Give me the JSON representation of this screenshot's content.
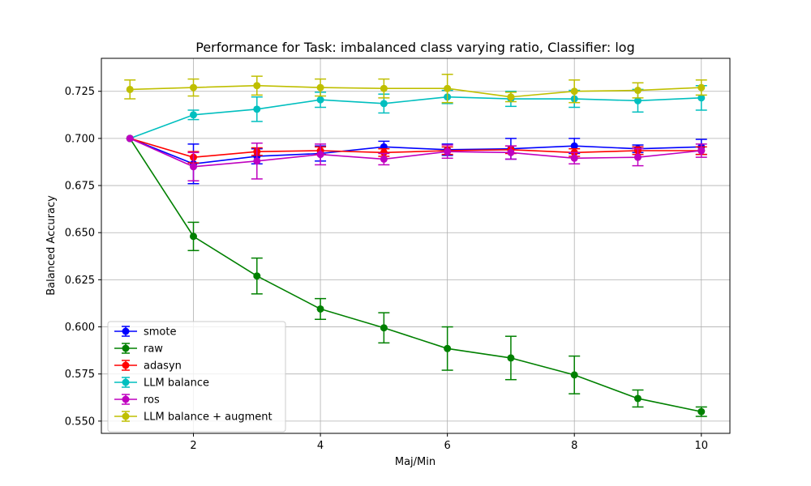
{
  "chart_data": {
    "type": "line",
    "title": "Performance for Task: imbalanced class varying ratio, Classifier: log",
    "xlabel": "Maj/Min",
    "ylabel": "Balanced Accuracy",
    "xlim": [
      0.55,
      10.45
    ],
    "ylim": [
      0.5435,
      0.7425
    ],
    "xticks": [
      2,
      4,
      6,
      8,
      10
    ],
    "yticks": [
      0.55,
      0.575,
      0.6,
      0.625,
      0.65,
      0.675,
      0.7,
      0.725
    ],
    "grid": true,
    "legend_position": "lower-left",
    "x": [
      1,
      2,
      3,
      4,
      5,
      6,
      7,
      8,
      9,
      10
    ],
    "series": [
      {
        "name": "smote",
        "color": "#0000ff",
        "values": [
          0.7,
          0.6865,
          0.6905,
          0.692,
          0.6955,
          0.694,
          0.6945,
          0.696,
          0.6945,
          0.6955
        ],
        "errors": [
          0.0,
          0.0105,
          0.004,
          0.004,
          0.003,
          0.003,
          0.0055,
          0.004,
          0.002,
          0.004
        ]
      },
      {
        "name": "raw",
        "color": "#008000",
        "values": [
          0.7,
          0.648,
          0.627,
          0.6095,
          0.5995,
          0.5885,
          0.5835,
          0.5745,
          0.562,
          0.555
        ],
        "errors": [
          0.0,
          0.0075,
          0.0095,
          0.0055,
          0.008,
          0.0115,
          0.0115,
          0.01,
          0.0045,
          0.0025
        ]
      },
      {
        "name": "adasyn",
        "color": "#ff0000",
        "values": [
          0.7,
          0.69,
          0.693,
          0.6935,
          0.6925,
          0.6935,
          0.694,
          0.6925,
          0.6935,
          0.6935
        ],
        "errors": [
          0.0,
          0.003,
          0.002,
          0.002,
          0.002,
          0.002,
          0.002,
          0.002,
          0.002,
          0.002
        ]
      },
      {
        "name": "LLM balance",
        "color": "#00bfbf",
        "values": [
          0.7,
          0.7125,
          0.7155,
          0.7205,
          0.7185,
          0.722,
          0.721,
          0.721,
          0.72,
          0.7215
        ],
        "errors": [
          0.0,
          0.0025,
          0.0065,
          0.004,
          0.005,
          0.0035,
          0.004,
          0.0045,
          0.006,
          0.0065
        ]
      },
      {
        "name": "ros",
        "color": "#bf00bf",
        "values": [
          0.7,
          0.685,
          0.688,
          0.6915,
          0.689,
          0.693,
          0.6925,
          0.6895,
          0.69,
          0.6935
        ],
        "errors": [
          0.0,
          0.0075,
          0.0095,
          0.0055,
          0.003,
          0.0035,
          0.0035,
          0.003,
          0.0045,
          0.0035
        ]
      },
      {
        "name": "LLM balance + augment",
        "color": "#bfbf00",
        "values": [
          0.726,
          0.727,
          0.728,
          0.727,
          0.7265,
          0.7265,
          0.722,
          0.725,
          0.7255,
          0.727
        ],
        "errors": [
          0.005,
          0.0045,
          0.005,
          0.0045,
          0.005,
          0.0075,
          0.0025,
          0.006,
          0.004,
          0.004
        ]
      }
    ]
  }
}
